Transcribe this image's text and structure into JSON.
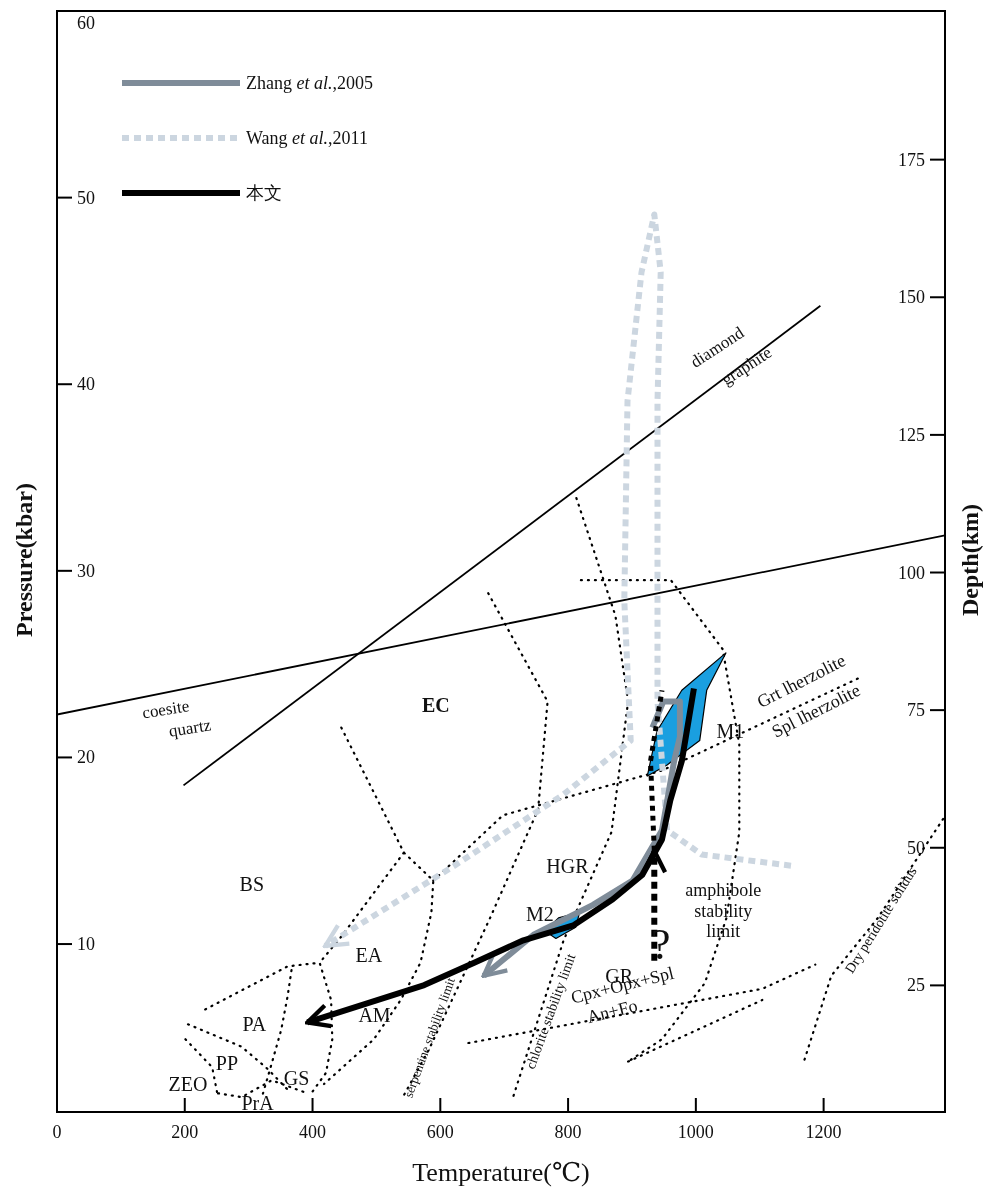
{
  "chart_data": {
    "type": "line",
    "xlabel": "Temperature(℃)",
    "ylabel": "Pressure(kbar)",
    "y2label": "Depth(km)",
    "xlim": [
      0,
      1390
    ],
    "xticks": [
      0,
      200,
      400,
      600,
      800,
      1000,
      1200
    ],
    "ylim": [
      1,
      60
    ],
    "yticks": [
      10,
      20,
      30,
      40,
      50,
      60
    ],
    "y2lim": [
      2,
      202
    ],
    "y2ticks": [
      25,
      50,
      75,
      100,
      125,
      150,
      175
    ],
    "legend": "top left",
    "grid": false,
    "marker": "none",
    "series": [
      {
        "color": "#000000",
        "line_style": "dotted",
        "x": [
          445,
          543,
          589,
          586,
          569,
          538,
          496,
          418
        ],
        "values": [
          21.6,
          14.9,
          13.4,
          11.7,
          9.0,
          7.0,
          4.9,
          2.5
        ]
      },
      {
        "color": "#000000",
        "line_style": "dotted",
        "x": [
          543,
          445,
          411,
          429,
          431,
          421,
          398
        ],
        "values": [
          14.9,
          10.4,
          9.0,
          7.0,
          4.9,
          3.1,
          2.0
        ]
      },
      {
        "color": "#000000",
        "line_style": "dotted",
        "x": [
          232,
          361,
          411
        ],
        "values": [
          6.5,
          8.8,
          9.0
        ]
      },
      {
        "color": "#000000",
        "line_style": "dotted",
        "x": [
          367,
          361,
          351,
          336,
          320
        ],
        "values": [
          8.6,
          7.2,
          5.4,
          3.6,
          1.7
        ]
      },
      {
        "color": "#000000",
        "line_style": "dotted",
        "x": [
          205,
          289,
          330,
          361
        ],
        "values": [
          5.7,
          4.5,
          3.3,
          2.2
        ]
      },
      {
        "color": "#000000",
        "line_style": "dotted",
        "x": [
          201,
          243,
          252
        ],
        "values": [
          4.9,
          3.4,
          1.8
        ]
      },
      {
        "color": "#000000",
        "line_style": "dotted",
        "x": [
          252,
          289,
          336,
          392
        ],
        "values": [
          2.0,
          1.8,
          2.7,
          2.0
        ]
      },
      {
        "color": "#000000",
        "line_style": "dotted",
        "x": [
          675,
          768,
          753,
          678,
          583,
          543
        ],
        "values": [
          28.8,
          23.0,
          17.2,
          11.4,
          4.4,
          1.9
        ]
      },
      {
        "color": "#000000",
        "line_style": "dotted",
        "x": [
          813,
          874,
          894,
          868,
          793,
          712
        ],
        "values": [
          33.9,
          27.6,
          23.0,
          16.0,
          10.2,
          1.6
        ]
      },
      {
        "color": "#000000",
        "line_style": "dotted",
        "x": [
          820,
          961,
          1042,
          1068,
          1068,
          1048,
          1014,
          947,
          894
        ],
        "values": [
          29.5,
          29.5,
          25.8,
          20.7,
          16.0,
          11.4,
          7.9,
          4.9,
          3.7
        ]
      },
      {
        "color": "#000000",
        "line_style": "dotted",
        "x": [
          589,
          698,
          947,
          1258
        ],
        "values": [
          13.4,
          16.9,
          19.3,
          24.3
        ]
      },
      {
        "color": "#000000",
        "line_style": "dotted",
        "x": [
          644,
          1104,
          1187
        ],
        "values": [
          4.7,
          7.6,
          8.9
        ]
      },
      {
        "color": "#000000",
        "line_style": "dotted",
        "x": [
          894,
          1104
        ],
        "values": [
          3.7,
          7.0
        ]
      },
      {
        "color": "#000000",
        "line_style": "dotted",
        "x": [
          1170,
          1212,
          1285,
          1387
        ],
        "values": [
          3.8,
          8.3,
          11.4,
          16.7
        ]
      },
      {
        "color": "#000000",
        "line_style": "solid",
        "x": [
          0,
          1390
        ],
        "values": [
          22.3,
          31.9
        ]
      },
      {
        "color": "#000000",
        "line_style": "solid",
        "x": [
          198,
          1195
        ],
        "values": [
          18.5,
          44.2
        ]
      },
      {
        "type": "area",
        "color": "#1a9fe0",
        "x": [
          924,
          939,
          978,
          1047,
          1017,
          1006,
          955
        ],
        "values": [
          19.0,
          21.4,
          23.6,
          25.6,
          23.6,
          20.9,
          19.6
        ]
      },
      {
        "type": "area",
        "color": "#1a9fe0",
        "x": [
          764,
          785,
          818,
          812,
          781
        ],
        "values": [
          10.7,
          11.4,
          11.7,
          10.9,
          10.3
        ]
      },
      {
        "name": "Wang *et al.*,2011",
        "color": "#ccd6e0",
        "line_style": "dashed",
        "x": [
          1149,
          1009,
          955,
          940,
          940,
          945,
          935,
          915,
          893,
          888,
          898,
          792,
          622,
          420
        ],
        "values": [
          14.2,
          14.8,
          16.1,
          23.0,
          39.1,
          46.0,
          49.1,
          46.0,
          39.1,
          28.4,
          20.9,
          18.0,
          14.2,
          9.9
        ]
      },
      {
        "name": "Zhang *et al.*,2005",
        "color": "#7f8c99",
        "line_style": "solid",
        "x": [
          932,
          949,
          975,
          975,
          966,
          947,
          901,
          839,
          746,
          668
        ],
        "values": [
          21.6,
          23.0,
          23.0,
          21.1,
          19.8,
          16.1,
          13.4,
          12.1,
          10.5,
          8.3
        ]
      },
      {
        "color": "#000000",
        "line_style": "dashed",
        "x": [
          935,
          935
        ],
        "values": [
          9.1,
          15.0
        ]
      },
      {
        "color": "#000000",
        "line_style": "dotted",
        "x": [
          935,
          929,
          947
        ],
        "values": [
          15.0,
          19.8,
          23.6
        ]
      },
      {
        "name": "本文",
        "color": "#000000",
        "line_style": "solid",
        "x": [
          997,
          978,
          960,
          947,
          916,
          870,
          808,
          730,
          653,
          575,
          392
        ],
        "values": [
          23.7,
          19.8,
          17.7,
          15.6,
          13.7,
          12.4,
          11.0,
          10.2,
          9.0,
          7.8,
          5.8
        ]
      }
    ],
    "annotations": [
      "EC",
      "BS",
      "EA",
      "AM",
      "PA",
      "PP",
      "ZEO",
      "GS",
      "PrA",
      "HGR",
      "GR",
      "M1",
      "M2",
      "amphibole stability limit",
      "?",
      "serpentine stability limit",
      "chlorite stability limit",
      "Cpx+Opx+Spl",
      "An+Fo",
      "Grt lherzolite",
      "Spl lherzolite",
      "Dry peridotite solidus",
      "coesite",
      "quartz",
      "diamond",
      "graphite"
    ]
  }
}
